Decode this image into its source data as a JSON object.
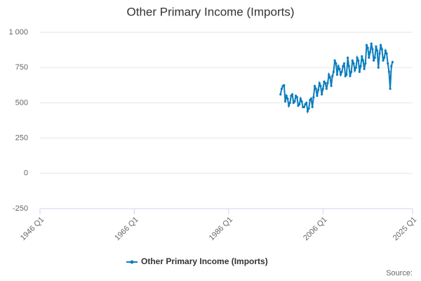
{
  "chart_data": {
    "type": "line",
    "title": "Other Primary Income (Imports)",
    "x": [
      "1997 Q1",
      "1997 Q2",
      "1997 Q3",
      "1997 Q4",
      "1998 Q1",
      "1998 Q2",
      "1998 Q3",
      "1998 Q4",
      "1999 Q1",
      "1999 Q2",
      "1999 Q3",
      "1999 Q4",
      "2000 Q1",
      "2000 Q2",
      "2000 Q3",
      "2000 Q4",
      "2001 Q1",
      "2001 Q2",
      "2001 Q3",
      "2001 Q4",
      "2002 Q1",
      "2002 Q2",
      "2002 Q3",
      "2002 Q4",
      "2003 Q1",
      "2003 Q2",
      "2003 Q3",
      "2003 Q4",
      "2004 Q1",
      "2004 Q2",
      "2004 Q3",
      "2004 Q4",
      "2005 Q1",
      "2005 Q2",
      "2005 Q3",
      "2005 Q4",
      "2006 Q1",
      "2006 Q2",
      "2006 Q3",
      "2006 Q4",
      "2007 Q1",
      "2007 Q2",
      "2007 Q3",
      "2007 Q4",
      "2008 Q1",
      "2008 Q2",
      "2008 Q3",
      "2008 Q4",
      "2009 Q1",
      "2009 Q2",
      "2009 Q3",
      "2009 Q4",
      "2010 Q1",
      "2010 Q2",
      "2010 Q3",
      "2010 Q4",
      "2011 Q1",
      "2011 Q2",
      "2011 Q3",
      "2011 Q4",
      "2012 Q1",
      "2012 Q2",
      "2012 Q3",
      "2012 Q4",
      "2013 Q1",
      "2013 Q2",
      "2013 Q3",
      "2013 Q4",
      "2014 Q1",
      "2014 Q2",
      "2014 Q3",
      "2014 Q4",
      "2015 Q1",
      "2015 Q2",
      "2015 Q3",
      "2015 Q4",
      "2016 Q1",
      "2016 Q2",
      "2016 Q3",
      "2016 Q4",
      "2017 Q1",
      "2017 Q2",
      "2017 Q3",
      "2017 Q4",
      "2018 Q1",
      "2018 Q2",
      "2018 Q3",
      "2018 Q4",
      "2019 Q1",
      "2019 Q2",
      "2019 Q3",
      "2019 Q4",
      "2020 Q1",
      "2020 Q2",
      "2020 Q3",
      "2020 Q4"
    ],
    "series": [
      {
        "name": "Other Primary Income (Imports)",
        "color": "#0a7dbd",
        "values": [
          560,
          600,
          620,
          625,
          510,
          550,
          530,
          480,
          500,
          550,
          560,
          500,
          510,
          550,
          540,
          480,
          490,
          530,
          510,
          470,
          470,
          490,
          500,
          440,
          460,
          520,
          530,
          470,
          540,
          620,
          600,
          550,
          590,
          640,
          620,
          560,
          600,
          650,
          640,
          600,
          640,
          700,
          680,
          620,
          690,
          720,
          800,
          780,
          700,
          760,
          740,
          700,
          720,
          760,
          780,
          690,
          700,
          820,
          760,
          690,
          720,
          800,
          780,
          730,
          750,
          820,
          800,
          720,
          760,
          830,
          800,
          740,
          780,
          910,
          890,
          820,
          860,
          920,
          880,
          800,
          820,
          900,
          870,
          750,
          850,
          910,
          880,
          800,
          820,
          870,
          850,
          780,
          720,
          600,
          760,
          790
        ]
      }
    ],
    "xlim": [
      "1946 Q1",
      "2025 Q1"
    ],
    "xticks": [
      "1946 Q1",
      "1966 Q1",
      "1986 Q1",
      "2006 Q1",
      "2025 Q1"
    ],
    "ylim": [
      -250,
      1000
    ],
    "yticks": [
      -250,
      0,
      250,
      500,
      750,
      {
        "value": 1000,
        "label": "1 000"
      }
    ],
    "grid": true,
    "legend": "bottom",
    "source": "Source:"
  }
}
